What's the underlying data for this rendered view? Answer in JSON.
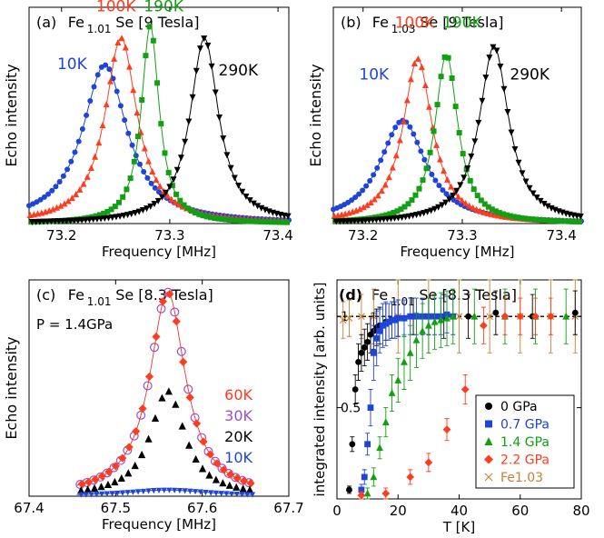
{
  "colors": {
    "black": "#000000",
    "red": "#ff3c1e",
    "green": "#12a012",
    "blue": "#1e44d8",
    "purple": "#9a4fd0",
    "orange": "#c88030"
  },
  "chart_data": [
    {
      "id": "a",
      "type": "line",
      "panel_label": "(a)",
      "title_main": "Fe",
      "title_sub": "1.01",
      "title_tail": "Se [9 Tesla]",
      "xlabel": "Frequency [MHz]",
      "ylabel": "Echo intensity",
      "xlim": [
        73.17,
        73.41
      ],
      "ylim": [
        0,
        1.05
      ],
      "xticks": [
        "73.2",
        "73.3",
        "73.4"
      ],
      "xtick_values": [
        73.2,
        73.3,
        73.4
      ],
      "series": [
        {
          "name": "10K",
          "color": "blue",
          "marker": "circle",
          "center": 73.24,
          "width": 0.025,
          "peak": 0.77
        },
        {
          "name": "100K",
          "color": "red",
          "marker": "triangle-up",
          "center": 73.255,
          "width": 0.018,
          "peak": 0.9
        },
        {
          "name": "190K",
          "color": "green",
          "marker": "square",
          "center": 73.282,
          "width": 0.01,
          "peak": 0.96
        },
        {
          "name": "290K",
          "color": "black",
          "marker": "triangle-down",
          "center": 73.332,
          "width": 0.016,
          "peak": 0.9
        }
      ],
      "labels": [
        {
          "text": "10K",
          "color": "blue",
          "x": 73.196,
          "y": 0.75
        },
        {
          "text": "100K",
          "color": "red",
          "x": 73.232,
          "y": 1.03
        },
        {
          "text": "190K",
          "color": "green",
          "x": 73.276,
          "y": 1.03
        },
        {
          "text": "290K",
          "color": "black",
          "x": 73.345,
          "y": 0.72
        }
      ]
    },
    {
      "id": "b",
      "type": "line",
      "panel_label": "(b)",
      "title_main": "Fe",
      "title_sub": "1.03",
      "title_tail": "Se [9 Tesla]",
      "xlabel": "Frequency [MHz]",
      "ylabel": "Echo intensity",
      "xlim": [
        73.17,
        73.42
      ],
      "ylim": [
        0,
        1.05
      ],
      "xticks": [
        "73.2",
        "73.3",
        "73.4"
      ],
      "xtick_values": [
        73.2,
        73.3,
        73.4
      ],
      "series": [
        {
          "name": "10K",
          "color": "blue",
          "marker": "circle",
          "center": 73.24,
          "width": 0.028,
          "peak": 0.5
        },
        {
          "name": "100K",
          "color": "red",
          "marker": "triangle-up",
          "center": 73.255,
          "width": 0.018,
          "peak": 0.8
        },
        {
          "name": "190K",
          "color": "green",
          "marker": "square",
          "center": 73.284,
          "width": 0.014,
          "peak": 0.82
        },
        {
          "name": "290K",
          "color": "black",
          "marker": "triangle-down",
          "center": 73.332,
          "width": 0.018,
          "peak": 0.86
        }
      ],
      "labels": [
        {
          "text": "10K",
          "color": "blue",
          "x": 73.196,
          "y": 0.7
        },
        {
          "text": "100K",
          "color": "red",
          "x": 73.232,
          "y": 0.95
        },
        {
          "text": "190K",
          "color": "green",
          "x": 73.28,
          "y": 0.95
        },
        {
          "text": "290K",
          "color": "black",
          "x": 73.348,
          "y": 0.7
        }
      ]
    },
    {
      "id": "c",
      "type": "scatter",
      "panel_label": "(c)",
      "title_main": "Fe",
      "title_sub": "1.01",
      "title_tail": "Se [8.3 Tesla]",
      "pressure_label": "P = 1.4GPa",
      "xlabel": "Frequency [MHz]",
      "ylabel": "Echo intensity",
      "xlim": [
        67.4,
        67.7
      ],
      "ylim": [
        0,
        1.05
      ],
      "xticks": [
        "67.4",
        "67.5",
        "67.6",
        "67.7"
      ],
      "xtick_values": [
        67.4,
        67.5,
        67.6,
        67.7
      ],
      "series": [
        {
          "name": "60K",
          "color": "red",
          "marker": "diamond",
          "center": 67.56,
          "width": 0.025,
          "peak": 0.99
        },
        {
          "name": "30K",
          "color": "purple",
          "marker": "open-circle",
          "center": 67.56,
          "width": 0.025,
          "peak": 0.99
        },
        {
          "name": "20K",
          "color": "black",
          "marker": "triangle-up",
          "center": 67.56,
          "width": 0.024,
          "peak": 0.51
        },
        {
          "name": "10K",
          "color": "blue",
          "marker": "triangle-down",
          "center": 67.56,
          "width": 0.06,
          "peak": 0.03
        }
      ],
      "legend_placement": "right"
    },
    {
      "id": "d",
      "type": "scatter",
      "panel_label": "(d)",
      "title_main": "Fe",
      "title_sub": "1.01",
      "title_tail": "Se [8.3 Tesla]",
      "xlabel": "T [K]",
      "ylabel": "integrated intensity [arb. units]",
      "xlim": [
        0,
        80
      ],
      "ylim": [
        0,
        1.2
      ],
      "xticks": [
        "0",
        "20",
        "40",
        "60",
        "80"
      ],
      "xtick_values": [
        0,
        20,
        40,
        60,
        80
      ],
      "yticks": [
        "0.5",
        "1"
      ],
      "ytick_values": [
        0.5,
        1
      ],
      "reference_line": 1,
      "legend_placement": "bottom-right",
      "series": [
        {
          "name": "0 GPa",
          "color": "black",
          "marker": "circle",
          "x": [
            4,
            5,
            6,
            7,
            8,
            9,
            10,
            11,
            12,
            13,
            14,
            16,
            18,
            20,
            25,
            30,
            35,
            43,
            52,
            64,
            78
          ],
          "y": [
            0.05,
            0.3,
            0.6,
            0.75,
            0.8,
            0.83,
            0.86,
            0.9,
            0.92,
            0.94,
            0.95,
            0.97,
            0.98,
            0.99,
            1.0,
            1.0,
            1.0,
            1.0,
            1.02,
            1.0,
            1.02
          ],
          "err": [
            0.02,
            0.04,
            0.08,
            0.1,
            0.1,
            0.1,
            0.1,
            0.1,
            0.1,
            0.1,
            0.1,
            0.1,
            0.1,
            0.1,
            0.1,
            0.1,
            0.12,
            0.12,
            0.12,
            0.12,
            0.12
          ]
        },
        {
          "name": "0.7 GPa",
          "color": "blue",
          "marker": "square",
          "x": [
            8,
            9,
            10,
            11,
            12,
            13,
            14,
            15,
            16,
            17,
            18,
            19,
            20,
            22,
            24,
            26,
            28,
            30,
            32,
            34,
            36,
            38
          ],
          "y": [
            0.05,
            0.12,
            0.3,
            0.5,
            0.8,
            0.88,
            0.92,
            0.95,
            0.96,
            0.97,
            0.98,
            0.98,
            0.99,
            0.99,
            1.0,
            1.0,
            1.0,
            1.0,
            1.0,
            1.0,
            1.01,
            1.0
          ],
          "err": [
            0.03,
            0.04,
            0.06,
            0.1,
            0.15,
            0.15,
            0.12,
            0.12,
            0.12,
            0.1,
            0.1,
            0.1,
            0.1,
            0.1,
            0.1,
            0.1,
            0.1,
            0.1,
            0.1,
            0.1,
            0.1,
            0.1
          ]
        },
        {
          "name": "1.4 GPa",
          "color": "green",
          "marker": "triangle-up",
          "x": [
            10,
            12,
            14,
            16,
            18,
            20,
            22,
            24,
            26,
            28,
            30,
            32,
            34,
            36,
            38,
            45,
            55,
            65,
            75
          ],
          "y": [
            0.03,
            0.12,
            0.28,
            0.42,
            0.58,
            0.65,
            0.75,
            0.8,
            0.87,
            0.92,
            0.95,
            0.97,
            0.98,
            0.99,
            1.0,
            1.0,
            1.0,
            1.0,
            1.0
          ],
          "err": [
            0.03,
            0.05,
            0.06,
            0.08,
            0.1,
            0.12,
            0.15,
            0.15,
            0.15,
            0.15,
            0.15,
            0.15,
            0.15,
            0.15,
            0.15,
            0.15,
            0.15,
            0.15,
            0.15
          ]
        },
        {
          "name": "2.2 GPa",
          "color": "red",
          "marker": "diamond",
          "x": [
            8,
            16,
            24,
            30,
            36,
            42,
            48,
            55,
            60,
            65,
            70
          ],
          "y": [
            0.02,
            0.03,
            0.12,
            0.2,
            0.38,
            0.6,
            0.95,
            1.0,
            1.0,
            1.0,
            1.0
          ],
          "err": [
            0.02,
            0.03,
            0.04,
            0.05,
            0.06,
            0.08,
            0.1,
            0.1,
            0.1,
            0.1,
            0.1
          ]
        },
        {
          "name": "Fe1.03",
          "color": "orange",
          "marker": "cross",
          "x": [
            2,
            4,
            8,
            12,
            20,
            30,
            40,
            50,
            60,
            70,
            78
          ],
          "y": [
            0.98,
            0.99,
            1.0,
            1.0,
            1.0,
            1.0,
            1.0,
            1.0,
            1.0,
            1.0,
            1.0
          ],
          "err": [
            0.1,
            0.1,
            0.12,
            0.15,
            0.2,
            0.2,
            0.2,
            0.2,
            0.2,
            0.2,
            0.2
          ]
        }
      ]
    }
  ]
}
